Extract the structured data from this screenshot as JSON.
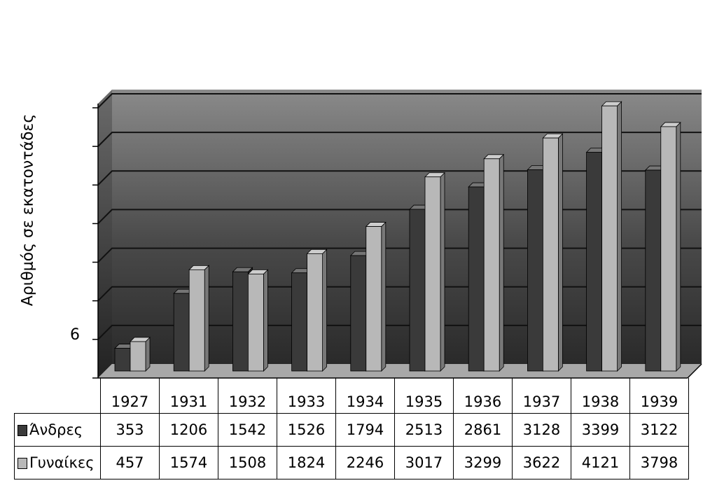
{
  "chart_data": {
    "type": "bar",
    "title": "",
    "xlabel": "",
    "ylabel": "Αριθμός σε εκατοντάδες",
    "ytick_label": "6",
    "ylim": [
      0,
      4200
    ],
    "grid": true,
    "categories": [
      "1927",
      "1931",
      "1932",
      "1933",
      "1934",
      "1935",
      "1936",
      "1937",
      "1938",
      "1939"
    ],
    "series": [
      {
        "name": "Άνδρες",
        "color": "#3a3a3a",
        "values": [
          353,
          1206,
          1542,
          1526,
          1794,
          2513,
          2861,
          3128,
          3399,
          3122
        ]
      },
      {
        "name": "Γυναίκες",
        "color": "#b8b8b8",
        "values": [
          457,
          1574,
          1508,
          1824,
          2246,
          3017,
          3299,
          3622,
          4121,
          3798
        ]
      }
    ]
  }
}
